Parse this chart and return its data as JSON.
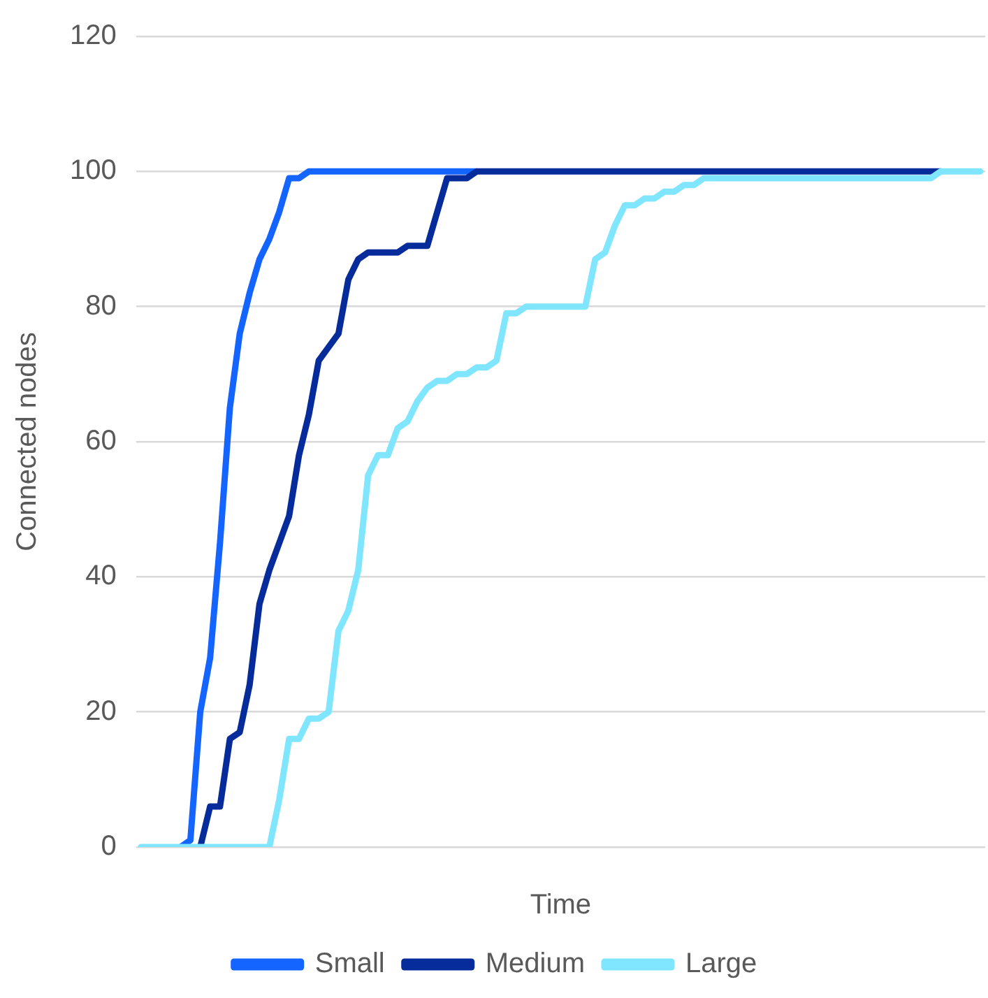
{
  "chart_data": {
    "type": "line",
    "xlabel": "Time",
    "ylabel": "Connected nodes",
    "categories": [
      null,
      null,
      null,
      null,
      null,
      null,
      null,
      null,
      null,
      null,
      null,
      null,
      null,
      null,
      null,
      null,
      null,
      null,
      null,
      null,
      null,
      null,
      null,
      null,
      null,
      null,
      null,
      null,
      null,
      null,
      null,
      null,
      null,
      null,
      null,
      null,
      null,
      null,
      null,
      null,
      null,
      null,
      null,
      null,
      null,
      null,
      null,
      null,
      null,
      null,
      null,
      null,
      null,
      null,
      null,
      null,
      null,
      null,
      null,
      null,
      null,
      null,
      null,
      null,
      null,
      null,
      null,
      null,
      null,
      null,
      null,
      null,
      null,
      null,
      null,
      null,
      null,
      null,
      null,
      null,
      null,
      null,
      null,
      null,
      null,
      null
    ],
    "series": [
      {
        "name": "Small",
        "color": "#1464ff",
        "values": [
          null,
          null,
          null,
          null,
          0,
          1,
          20,
          28,
          45,
          65,
          76,
          82,
          87,
          90,
          94,
          99,
          99,
          100,
          100,
          100,
          100,
          100,
          100,
          100,
          100,
          100,
          100,
          100,
          100,
          100,
          100,
          100,
          100,
          100,
          100,
          null,
          null,
          null,
          null,
          null,
          null,
          null,
          null,
          null,
          null,
          null,
          null,
          null,
          null,
          null,
          null,
          null,
          null,
          null,
          null,
          null,
          null,
          null,
          null,
          null,
          null,
          null,
          null,
          null,
          null,
          null,
          null,
          null,
          null,
          null,
          null,
          null,
          null,
          null,
          null,
          null,
          null,
          null,
          null,
          null,
          null,
          null,
          null,
          null,
          null,
          null
        ]
      },
      {
        "name": "Medium",
        "color": "#062c9c",
        "values": [
          null,
          null,
          null,
          null,
          null,
          null,
          0,
          6,
          6,
          16,
          17,
          24,
          36,
          41,
          45,
          49,
          58,
          64,
          72,
          74,
          76,
          84,
          87,
          88,
          88,
          88,
          88,
          89,
          89,
          89,
          94,
          99,
          99,
          99,
          100,
          100,
          100,
          100,
          100,
          100,
          100,
          100,
          100,
          100,
          100,
          100,
          100,
          100,
          100,
          100,
          100,
          100,
          100,
          100,
          100,
          100,
          100,
          100,
          100,
          100,
          100,
          100,
          100,
          100,
          100,
          100,
          100,
          100,
          100,
          100,
          100,
          100,
          100,
          100,
          100,
          100,
          100,
          100,
          100,
          100,
          100,
          100,
          null,
          null,
          null,
          null
        ]
      },
      {
        "name": "Large",
        "color": "#80e6ff",
        "values": [
          0,
          0,
          0,
          0,
          0,
          0,
          0,
          0,
          0,
          0,
          0,
          0,
          0,
          0,
          7,
          16,
          16,
          19,
          19,
          20,
          32,
          35,
          41,
          55,
          58,
          58,
          62,
          63,
          66,
          68,
          69,
          69,
          70,
          70,
          71,
          71,
          72,
          79,
          79,
          80,
          80,
          80,
          80,
          80,
          80,
          80,
          87,
          88,
          92,
          95,
          95,
          96,
          96,
          97,
          97,
          98,
          98,
          99,
          99,
          99,
          99,
          99,
          99,
          99,
          99,
          99,
          99,
          99,
          99,
          99,
          99,
          99,
          99,
          99,
          99,
          99,
          99,
          99,
          99,
          99,
          99,
          100,
          100,
          100,
          100,
          100
        ]
      }
    ],
    "ylim": [
      0,
      120
    ],
    "yticks": [
      0,
      20,
      40,
      60,
      80,
      100,
      120
    ],
    "grid": "y",
    "legend": "bottom",
    "marker": "none",
    "line_style": "solid"
  }
}
